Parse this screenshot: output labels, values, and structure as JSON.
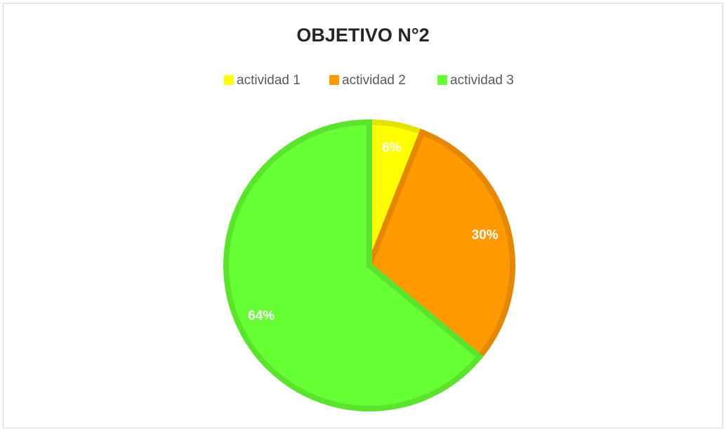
{
  "chart_data": {
    "type": "pie",
    "title": "OBJETIVO N°2",
    "categories": [
      "actividad 1",
      "actividad 2",
      "actividad 3"
    ],
    "values": [
      6,
      30,
      64
    ],
    "value_labels": [
      "6%",
      "30%",
      "64%"
    ],
    "colors": [
      "#ffff00",
      "#ff9900",
      "#66ff33"
    ],
    "legend": "top"
  }
}
